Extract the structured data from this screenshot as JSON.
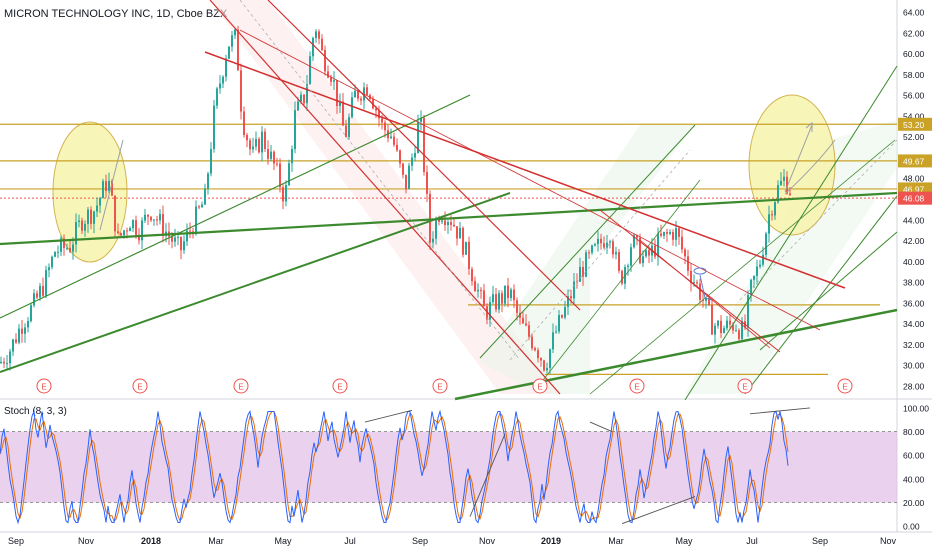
{
  "chart_title": "MICRON TECHNOLOGY INC, 1D, Cboe BZX",
  "stoch_title": "Stoch (8, 3, 3)",
  "chart_data": {
    "type": "candlestick",
    "title": "MICRON TECHNOLOGY INC, 1D, Cboe BZX",
    "x_labels": [
      "Sep",
      "Nov",
      "2018",
      "Mar",
      "May",
      "Jul",
      "Sep",
      "Nov",
      "2019",
      "Mar",
      "May",
      "Jul",
      "Sep",
      "Nov"
    ],
    "y_ticks": [
      "64.00",
      "62.00",
      "60.00",
      "58.00",
      "56.00",
      "54.00",
      "52.00",
      "50.00",
      "48.00",
      "46.00",
      "44.00",
      "42.00",
      "40.00",
      "38.00",
      "36.00",
      "34.00",
      "32.00",
      "30.00",
      "28.00"
    ],
    "ylim": [
      27.5,
      64.5
    ],
    "price_labels": [
      {
        "value": 53.2,
        "text": "53.20",
        "color": "#c9a227"
      },
      {
        "value": 49.67,
        "text": "49.67",
        "color": "#c9a227"
      },
      {
        "value": 46.97,
        "text": "46.97",
        "color": "#c9a227"
      },
      {
        "value": 46.08,
        "text": "46.08",
        "color": "#ef5350"
      }
    ],
    "earnings_marker": "E",
    "price_path": [
      [
        0,
        30.2
      ],
      [
        10,
        31.5
      ],
      [
        22,
        34
      ],
      [
        35,
        36
      ],
      [
        45,
        38
      ],
      [
        55,
        41
      ],
      [
        70,
        41.5
      ],
      [
        82,
        44
      ],
      [
        95,
        45
      ],
      [
        108,
        48
      ],
      [
        118,
        42
      ],
      [
        130,
        44
      ],
      [
        140,
        43
      ],
      [
        150,
        45
      ],
      [
        165,
        43
      ],
      [
        180,
        41
      ],
      [
        195,
        44
      ],
      [
        205,
        46
      ],
      [
        215,
        55
      ],
      [
        228,
        61
      ],
      [
        236,
        61.5
      ],
      [
        242,
        54
      ],
      [
        252,
        50
      ],
      [
        262,
        52
      ],
      [
        275,
        49
      ],
      [
        285,
        46
      ],
      [
        295,
        54
      ],
      [
        305,
        56
      ],
      [
        315,
        63
      ],
      [
        322,
        60
      ],
      [
        332,
        58
      ],
      [
        345,
        52
      ],
      [
        355,
        56
      ],
      [
        368,
        57
      ],
      [
        382,
        53
      ],
      [
        392,
        52
      ],
      [
        405,
        47
      ],
      [
        412,
        50
      ],
      [
        420,
        54
      ],
      [
        430,
        42
      ],
      [
        440,
        45
      ],
      [
        452,
        44
      ],
      [
        462,
        42
      ],
      [
        475,
        38
      ],
      [
        485,
        35
      ],
      [
        495,
        36
      ],
      [
        510,
        37
      ],
      [
        520,
        34
      ],
      [
        535,
        32
      ],
      [
        545,
        30
      ],
      [
        555,
        33
      ],
      [
        568,
        36
      ],
      [
        580,
        39
      ],
      [
        595,
        41
      ],
      [
        610,
        43
      ],
      [
        620,
        38
      ],
      [
        632,
        42
      ],
      [
        645,
        40
      ],
      [
        660,
        42
      ],
      [
        675,
        43
      ],
      [
        690,
        39
      ],
      [
        700,
        37
      ],
      [
        712,
        34
      ],
      [
        722,
        33.5
      ],
      [
        735,
        34
      ],
      [
        744,
        33
      ],
      [
        750,
        37
      ],
      [
        760,
        40
      ],
      [
        770,
        45
      ],
      [
        778,
        47
      ],
      [
        785,
        48
      ],
      [
        792,
        46.5
      ]
    ],
    "stoch_panel": {
      "y_ticks": [
        "100.00",
        "80.00",
        "60.00",
        "40.00",
        "20.00",
        "0.00"
      ],
      "ylim": [
        -5,
        105
      ],
      "overbought": 80,
      "oversold": 20,
      "series": [
        {
          "color": "#2962ff"
        },
        {
          "color": "#ef6c00"
        }
      ]
    }
  },
  "colors": {
    "up": "#26a69a",
    "down": "#ef5350",
    "green_line": "#3c8a2e",
    "red_line": "#d32f2f",
    "gold_line": "#c9a227",
    "band_fill": "#e1bee7",
    "ellipse_fill": "#f7f3a8"
  }
}
